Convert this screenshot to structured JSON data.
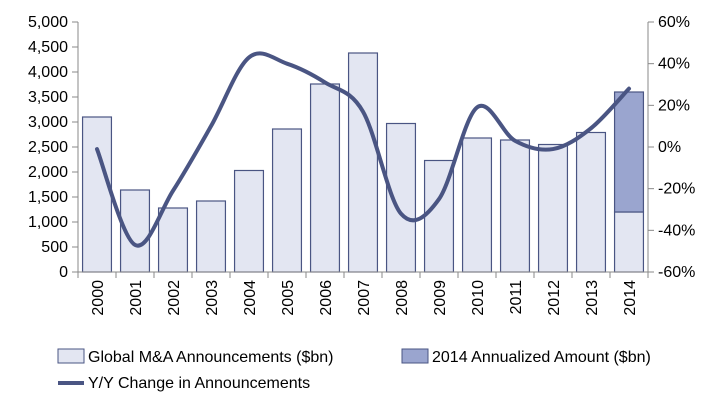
{
  "chart_data": {
    "type": "bar",
    "categories": [
      "2000",
      "2001",
      "2002",
      "2003",
      "2004",
      "2005",
      "2006",
      "2007",
      "2008",
      "2009",
      "2010",
      "2011",
      "2012",
      "2013",
      "2014"
    ],
    "series": [
      {
        "name": "Global M&A Announcements ($bn)",
        "kind": "bar",
        "axis": "left",
        "color": "#e3e6f2",
        "values": [
          3100,
          1640,
          1280,
          1420,
          2030,
          2860,
          3760,
          4380,
          2970,
          2230,
          2680,
          2640,
          2550,
          2790,
          1200
        ]
      },
      {
        "name": "2014 Annualized Amount ($bn)",
        "kind": "stacked-bar",
        "axis": "left",
        "color": "#9aa5cf",
        "category": "2014",
        "base": 1200,
        "top": 3600
      },
      {
        "name": "Y/Y Change in Announcements",
        "kind": "line",
        "axis": "right",
        "color": "#4a5583",
        "values": [
          -1,
          -47,
          -21,
          10,
          43,
          40,
          31,
          17,
          -32,
          -25,
          19,
          3,
          -1,
          9,
          28
        ]
      }
    ],
    "y_left": {
      "min": 0,
      "max": 5000,
      "ticks": [
        "0",
        "500",
        "1,000",
        "1,500",
        "2,000",
        "2,500",
        "3,000",
        "3,500",
        "4,000",
        "4,500",
        "5,000"
      ]
    },
    "y_right": {
      "min": -60,
      "max": 60,
      "ticks": [
        "-60%",
        "-40%",
        "-20%",
        "0%",
        "20%",
        "40%",
        "60%"
      ]
    },
    "legend": {
      "placement": "bottom",
      "items": [
        "Global M&A Announcements ($bn)",
        "2014 Annualized Amount ($bn)",
        "Y/Y Change in Announcements"
      ]
    },
    "grid": false
  }
}
